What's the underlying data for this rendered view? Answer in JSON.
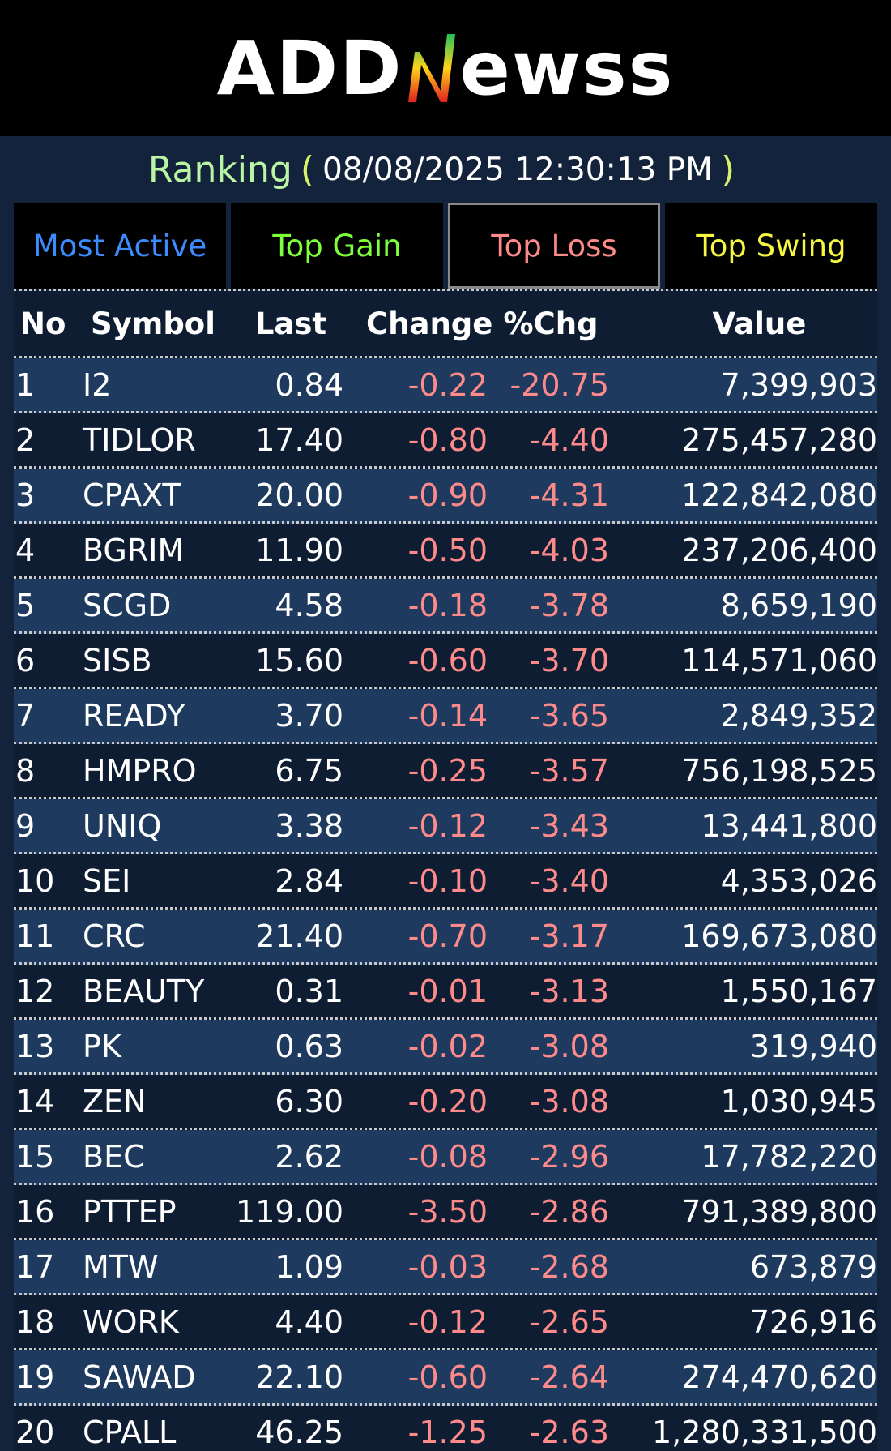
{
  "brand": {
    "left": "ADD",
    "mark": "N",
    "right": "ewss",
    "mark_gradient": [
      "#e02020",
      "#ffd21a",
      "#22c25a"
    ]
  },
  "ranking": {
    "label": "Ranking",
    "open": "(",
    "timestamp": "08/08/2025 12:30:13 PM",
    "close": ")"
  },
  "tabs": [
    {
      "label": "Most Active",
      "active": false
    },
    {
      "label": "Top Gain",
      "active": false
    },
    {
      "label": "Top Loss",
      "active": true
    },
    {
      "label": "Top Swing",
      "active": false
    }
  ],
  "table": {
    "headers": {
      "no": "No",
      "symbol": "Symbol",
      "last": "Last",
      "change": "Change",
      "pct": "%Chg",
      "value": "Value"
    },
    "rows": [
      {
        "no": "1",
        "symbol": "I2",
        "last": "0.84",
        "change": "-0.22",
        "pct": "-20.75",
        "value": "7,399,903"
      },
      {
        "no": "2",
        "symbol": "TIDLOR",
        "last": "17.40",
        "change": "-0.80",
        "pct": "-4.40",
        "value": "275,457,280"
      },
      {
        "no": "3",
        "symbol": "CPAXT",
        "last": "20.00",
        "change": "-0.90",
        "pct": "-4.31",
        "value": "122,842,080"
      },
      {
        "no": "4",
        "symbol": "BGRIM",
        "last": "11.90",
        "change": "-0.50",
        "pct": "-4.03",
        "value": "237,206,400"
      },
      {
        "no": "5",
        "symbol": "SCGD",
        "last": "4.58",
        "change": "-0.18",
        "pct": "-3.78",
        "value": "8,659,190"
      },
      {
        "no": "6",
        "symbol": "SISB",
        "last": "15.60",
        "change": "-0.60",
        "pct": "-3.70",
        "value": "114,571,060"
      },
      {
        "no": "7",
        "symbol": "READY",
        "last": "3.70",
        "change": "-0.14",
        "pct": "-3.65",
        "value": "2,849,352"
      },
      {
        "no": "8",
        "symbol": "HMPRO",
        "last": "6.75",
        "change": "-0.25",
        "pct": "-3.57",
        "value": "756,198,525"
      },
      {
        "no": "9",
        "symbol": "UNIQ",
        "last": "3.38",
        "change": "-0.12",
        "pct": "-3.43",
        "value": "13,441,800"
      },
      {
        "no": "10",
        "symbol": "SEI",
        "last": "2.84",
        "change": "-0.10",
        "pct": "-3.40",
        "value": "4,353,026"
      },
      {
        "no": "11",
        "symbol": "CRC",
        "last": "21.40",
        "change": "-0.70",
        "pct": "-3.17",
        "value": "169,673,080"
      },
      {
        "no": "12",
        "symbol": "BEAUTY",
        "last": "0.31",
        "change": "-0.01",
        "pct": "-3.13",
        "value": "1,550,167"
      },
      {
        "no": "13",
        "symbol": "PK",
        "last": "0.63",
        "change": "-0.02",
        "pct": "-3.08",
        "value": "319,940"
      },
      {
        "no": "14",
        "symbol": "ZEN",
        "last": "6.30",
        "change": "-0.20",
        "pct": "-3.08",
        "value": "1,030,945"
      },
      {
        "no": "15",
        "symbol": "BEC",
        "last": "2.62",
        "change": "-0.08",
        "pct": "-2.96",
        "value": "17,782,220"
      },
      {
        "no": "16",
        "symbol": "PTTEP",
        "last": "119.00",
        "change": "-3.50",
        "pct": "-2.86",
        "value": "791,389,800"
      },
      {
        "no": "17",
        "symbol": "MTW",
        "last": "1.09",
        "change": "-0.03",
        "pct": "-2.68",
        "value": "673,879"
      },
      {
        "no": "18",
        "symbol": "WORK",
        "last": "4.40",
        "change": "-0.12",
        "pct": "-2.65",
        "value": "726,916"
      },
      {
        "no": "19",
        "symbol": "SAWAD",
        "last": "22.10",
        "change": "-0.60",
        "pct": "-2.64",
        "value": "274,470,620"
      },
      {
        "no": "20",
        "symbol": "CPALL",
        "last": "46.25",
        "change": "-1.25",
        "pct": "-2.63",
        "value": "1,280,331,500"
      }
    ]
  },
  "colors": {
    "background": "#13233b",
    "row_alt": "#1e3a5e",
    "negative": "#ff8a8a"
  }
}
